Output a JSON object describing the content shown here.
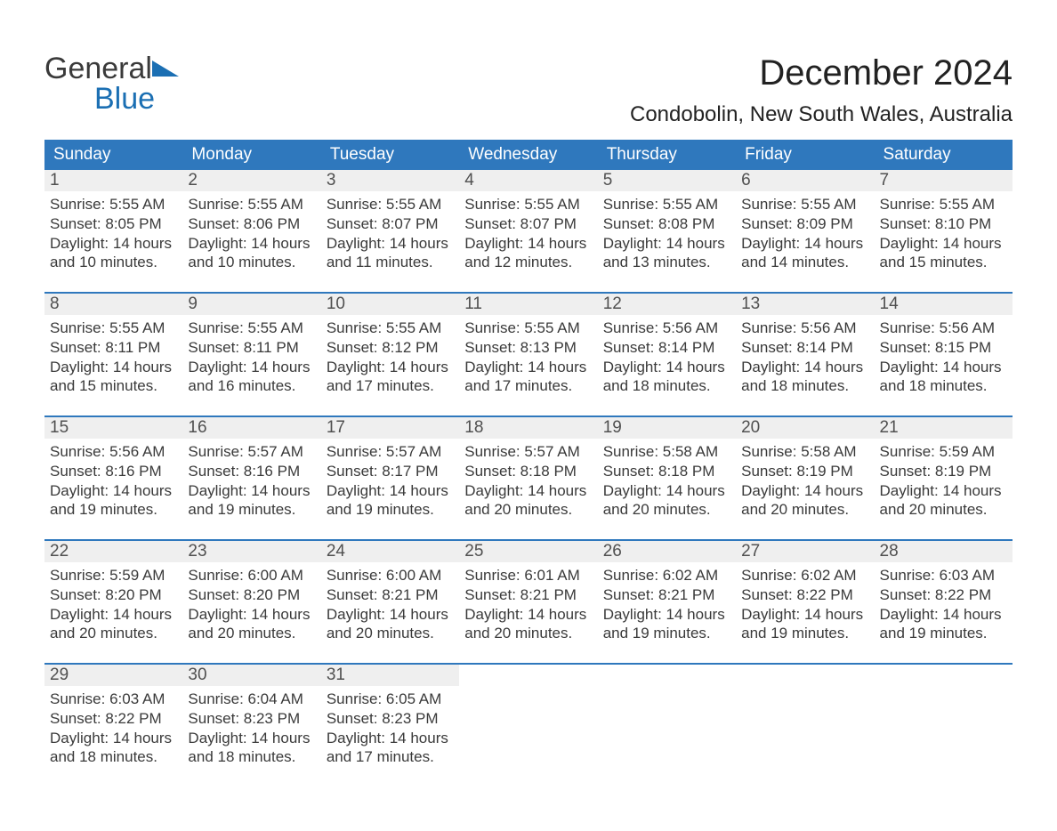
{
  "brand": {
    "word1": "General",
    "word2": "Blue"
  },
  "title": "December 2024",
  "location": "Condobolin, New South Wales, Australia",
  "colors": {
    "header_bg": "#2f78bd",
    "header_fg": "#ffffff",
    "daynum_bg": "#efefef",
    "text": "#3a3a3a",
    "brand_blue": "#1b6fb3"
  },
  "day_headers": [
    "Sunday",
    "Monday",
    "Tuesday",
    "Wednesday",
    "Thursday",
    "Friday",
    "Saturday"
  ],
  "weeks": [
    [
      {
        "n": "1",
        "sr": "Sunrise: 5:55 AM",
        "ss": "Sunset: 8:05 PM",
        "d1": "Daylight: 14 hours",
        "d2": "and 10 minutes."
      },
      {
        "n": "2",
        "sr": "Sunrise: 5:55 AM",
        "ss": "Sunset: 8:06 PM",
        "d1": "Daylight: 14 hours",
        "d2": "and 10 minutes."
      },
      {
        "n": "3",
        "sr": "Sunrise: 5:55 AM",
        "ss": "Sunset: 8:07 PM",
        "d1": "Daylight: 14 hours",
        "d2": "and 11 minutes."
      },
      {
        "n": "4",
        "sr": "Sunrise: 5:55 AM",
        "ss": "Sunset: 8:07 PM",
        "d1": "Daylight: 14 hours",
        "d2": "and 12 minutes."
      },
      {
        "n": "5",
        "sr": "Sunrise: 5:55 AM",
        "ss": "Sunset: 8:08 PM",
        "d1": "Daylight: 14 hours",
        "d2": "and 13 minutes."
      },
      {
        "n": "6",
        "sr": "Sunrise: 5:55 AM",
        "ss": "Sunset: 8:09 PM",
        "d1": "Daylight: 14 hours",
        "d2": "and 14 minutes."
      },
      {
        "n": "7",
        "sr": "Sunrise: 5:55 AM",
        "ss": "Sunset: 8:10 PM",
        "d1": "Daylight: 14 hours",
        "d2": "and 15 minutes."
      }
    ],
    [
      {
        "n": "8",
        "sr": "Sunrise: 5:55 AM",
        "ss": "Sunset: 8:11 PM",
        "d1": "Daylight: 14 hours",
        "d2": "and 15 minutes."
      },
      {
        "n": "9",
        "sr": "Sunrise: 5:55 AM",
        "ss": "Sunset: 8:11 PM",
        "d1": "Daylight: 14 hours",
        "d2": "and 16 minutes."
      },
      {
        "n": "10",
        "sr": "Sunrise: 5:55 AM",
        "ss": "Sunset: 8:12 PM",
        "d1": "Daylight: 14 hours",
        "d2": "and 17 minutes."
      },
      {
        "n": "11",
        "sr": "Sunrise: 5:55 AM",
        "ss": "Sunset: 8:13 PM",
        "d1": "Daylight: 14 hours",
        "d2": "and 17 minutes."
      },
      {
        "n": "12",
        "sr": "Sunrise: 5:56 AM",
        "ss": "Sunset: 8:14 PM",
        "d1": "Daylight: 14 hours",
        "d2": "and 18 minutes."
      },
      {
        "n": "13",
        "sr": "Sunrise: 5:56 AM",
        "ss": "Sunset: 8:14 PM",
        "d1": "Daylight: 14 hours",
        "d2": "and 18 minutes."
      },
      {
        "n": "14",
        "sr": "Sunrise: 5:56 AM",
        "ss": "Sunset: 8:15 PM",
        "d1": "Daylight: 14 hours",
        "d2": "and 18 minutes."
      }
    ],
    [
      {
        "n": "15",
        "sr": "Sunrise: 5:56 AM",
        "ss": "Sunset: 8:16 PM",
        "d1": "Daylight: 14 hours",
        "d2": "and 19 minutes."
      },
      {
        "n": "16",
        "sr": "Sunrise: 5:57 AM",
        "ss": "Sunset: 8:16 PM",
        "d1": "Daylight: 14 hours",
        "d2": "and 19 minutes."
      },
      {
        "n": "17",
        "sr": "Sunrise: 5:57 AM",
        "ss": "Sunset: 8:17 PM",
        "d1": "Daylight: 14 hours",
        "d2": "and 19 minutes."
      },
      {
        "n": "18",
        "sr": "Sunrise: 5:57 AM",
        "ss": "Sunset: 8:18 PM",
        "d1": "Daylight: 14 hours",
        "d2": "and 20 minutes."
      },
      {
        "n": "19",
        "sr": "Sunrise: 5:58 AM",
        "ss": "Sunset: 8:18 PM",
        "d1": "Daylight: 14 hours",
        "d2": "and 20 minutes."
      },
      {
        "n": "20",
        "sr": "Sunrise: 5:58 AM",
        "ss": "Sunset: 8:19 PM",
        "d1": "Daylight: 14 hours",
        "d2": "and 20 minutes."
      },
      {
        "n": "21",
        "sr": "Sunrise: 5:59 AM",
        "ss": "Sunset: 8:19 PM",
        "d1": "Daylight: 14 hours",
        "d2": "and 20 minutes."
      }
    ],
    [
      {
        "n": "22",
        "sr": "Sunrise: 5:59 AM",
        "ss": "Sunset: 8:20 PM",
        "d1": "Daylight: 14 hours",
        "d2": "and 20 minutes."
      },
      {
        "n": "23",
        "sr": "Sunrise: 6:00 AM",
        "ss": "Sunset: 8:20 PM",
        "d1": "Daylight: 14 hours",
        "d2": "and 20 minutes."
      },
      {
        "n": "24",
        "sr": "Sunrise: 6:00 AM",
        "ss": "Sunset: 8:21 PM",
        "d1": "Daylight: 14 hours",
        "d2": "and 20 minutes."
      },
      {
        "n": "25",
        "sr": "Sunrise: 6:01 AM",
        "ss": "Sunset: 8:21 PM",
        "d1": "Daylight: 14 hours",
        "d2": "and 20 minutes."
      },
      {
        "n": "26",
        "sr": "Sunrise: 6:02 AM",
        "ss": "Sunset: 8:21 PM",
        "d1": "Daylight: 14 hours",
        "d2": "and 19 minutes."
      },
      {
        "n": "27",
        "sr": "Sunrise: 6:02 AM",
        "ss": "Sunset: 8:22 PM",
        "d1": "Daylight: 14 hours",
        "d2": "and 19 minutes."
      },
      {
        "n": "28",
        "sr": "Sunrise: 6:03 AM",
        "ss": "Sunset: 8:22 PM",
        "d1": "Daylight: 14 hours",
        "d2": "and 19 minutes."
      }
    ],
    [
      {
        "n": "29",
        "sr": "Sunrise: 6:03 AM",
        "ss": "Sunset: 8:22 PM",
        "d1": "Daylight: 14 hours",
        "d2": "and 18 minutes."
      },
      {
        "n": "30",
        "sr": "Sunrise: 6:04 AM",
        "ss": "Sunset: 8:23 PM",
        "d1": "Daylight: 14 hours",
        "d2": "and 18 minutes."
      },
      {
        "n": "31",
        "sr": "Sunrise: 6:05 AM",
        "ss": "Sunset: 8:23 PM",
        "d1": "Daylight: 14 hours",
        "d2": "and 17 minutes."
      },
      null,
      null,
      null,
      null
    ]
  ]
}
